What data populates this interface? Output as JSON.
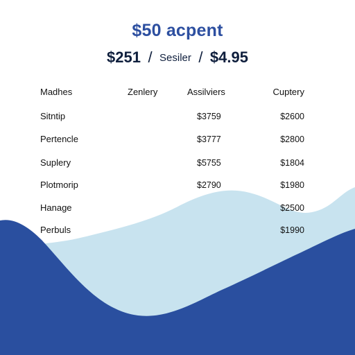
{
  "header": {
    "title": "$50 acpent",
    "subtitle_left": "$251",
    "subtitle_sep_1": "/",
    "subtitle_mid": "Sesiler",
    "subtitle_sep_2": "/",
    "subtitle_right": "$4.95"
  },
  "table": {
    "columns": [
      "Madhes",
      "Zenlery",
      "Assilviers",
      "Cuptery"
    ],
    "rows": [
      {
        "name": "Sitntip",
        "c1": "",
        "c2": "$3759",
        "c3": "$2600"
      },
      {
        "name": "Pertencle",
        "c1": "",
        "c2": "$3777",
        "c3": "$2800"
      },
      {
        "name": "Suplery",
        "c1": "",
        "c2": "$5755",
        "c3": "$1804"
      },
      {
        "name": "Plotmorip",
        "c1": "",
        "c2": "$2790",
        "c3": "$1980"
      },
      {
        "name": "Hanage",
        "c1": "",
        "c2": "",
        "c3": "$2500"
      },
      {
        "name": "Perbuls",
        "c1": "",
        "c2": "",
        "c3": "$1990"
      }
    ]
  },
  "colors": {
    "accent": "#2d4fa0",
    "wave_dark": "#2a4f9f",
    "wave_light": "#c8e3ef",
    "text": "#111111"
  }
}
